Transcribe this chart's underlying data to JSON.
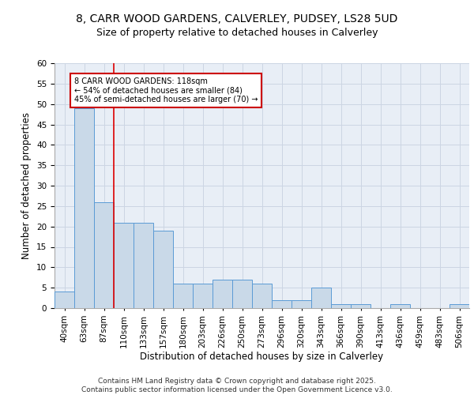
{
  "title_line1": "8, CARR WOOD GARDENS, CALVERLEY, PUDSEY, LS28 5UD",
  "title_line2": "Size of property relative to detached houses in Calverley",
  "xlabel": "Distribution of detached houses by size in Calverley",
  "ylabel": "Number of detached properties",
  "categories": [
    "40sqm",
    "63sqm",
    "87sqm",
    "110sqm",
    "133sqm",
    "157sqm",
    "180sqm",
    "203sqm",
    "226sqm",
    "250sqm",
    "273sqm",
    "296sqm",
    "320sqm",
    "343sqm",
    "366sqm",
    "390sqm",
    "413sqm",
    "436sqm",
    "459sqm",
    "483sqm",
    "506sqm"
  ],
  "values": [
    4,
    49,
    26,
    21,
    21,
    19,
    6,
    6,
    7,
    7,
    6,
    2,
    2,
    5,
    1,
    1,
    0,
    1,
    0,
    0,
    1
  ],
  "bar_color": "#c9d9e8",
  "bar_edge_color": "#5b9bd5",
  "vline_x_index": 3,
  "vline_color": "#dd0000",
  "annotation_text": "8 CARR WOOD GARDENS: 118sqm\n← 54% of detached houses are smaller (84)\n45% of semi-detached houses are larger (70) →",
  "annotation_box_edge_color": "#cc0000",
  "annotation_fontsize": 7.0,
  "ylim": [
    0,
    60
  ],
  "yticks": [
    0,
    5,
    10,
    15,
    20,
    25,
    30,
    35,
    40,
    45,
    50,
    55,
    60
  ],
  "grid_color": "#ccd5e3",
  "background_color": "#e8eef6",
  "footer_text": "Contains HM Land Registry data © Crown copyright and database right 2025.\nContains public sector information licensed under the Open Government Licence v3.0.",
  "title_fontsize": 10,
  "subtitle_fontsize": 9,
  "axis_label_fontsize": 8.5,
  "tick_fontsize": 7.5,
  "footer_fontsize": 6.5
}
